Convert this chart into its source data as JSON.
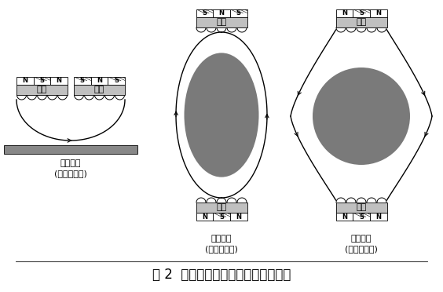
{
  "title": "图 2  双靶非平衡磁控溅射结构示意图",
  "title_fontsize": 12,
  "bg_color": "#ffffff",
  "text_color": "#000000",
  "target_fill": "#c0c0c0",
  "circle_fill": "#7a7a7a",
  "caption1_line1": "平行对靶",
  "caption1_line2": "(磁场闭合性)",
  "caption2_line1": "垂直对靶",
  "caption2_line2": "(磁场闭合性)",
  "caption3_line1": "垂直对靶",
  "caption3_line2": "(镜面磁场性)",
  "label_target": "靶材",
  "font_size_label": 8,
  "font_size_caption": 8,
  "font_size_magnet": 6,
  "font_size_title": 12
}
